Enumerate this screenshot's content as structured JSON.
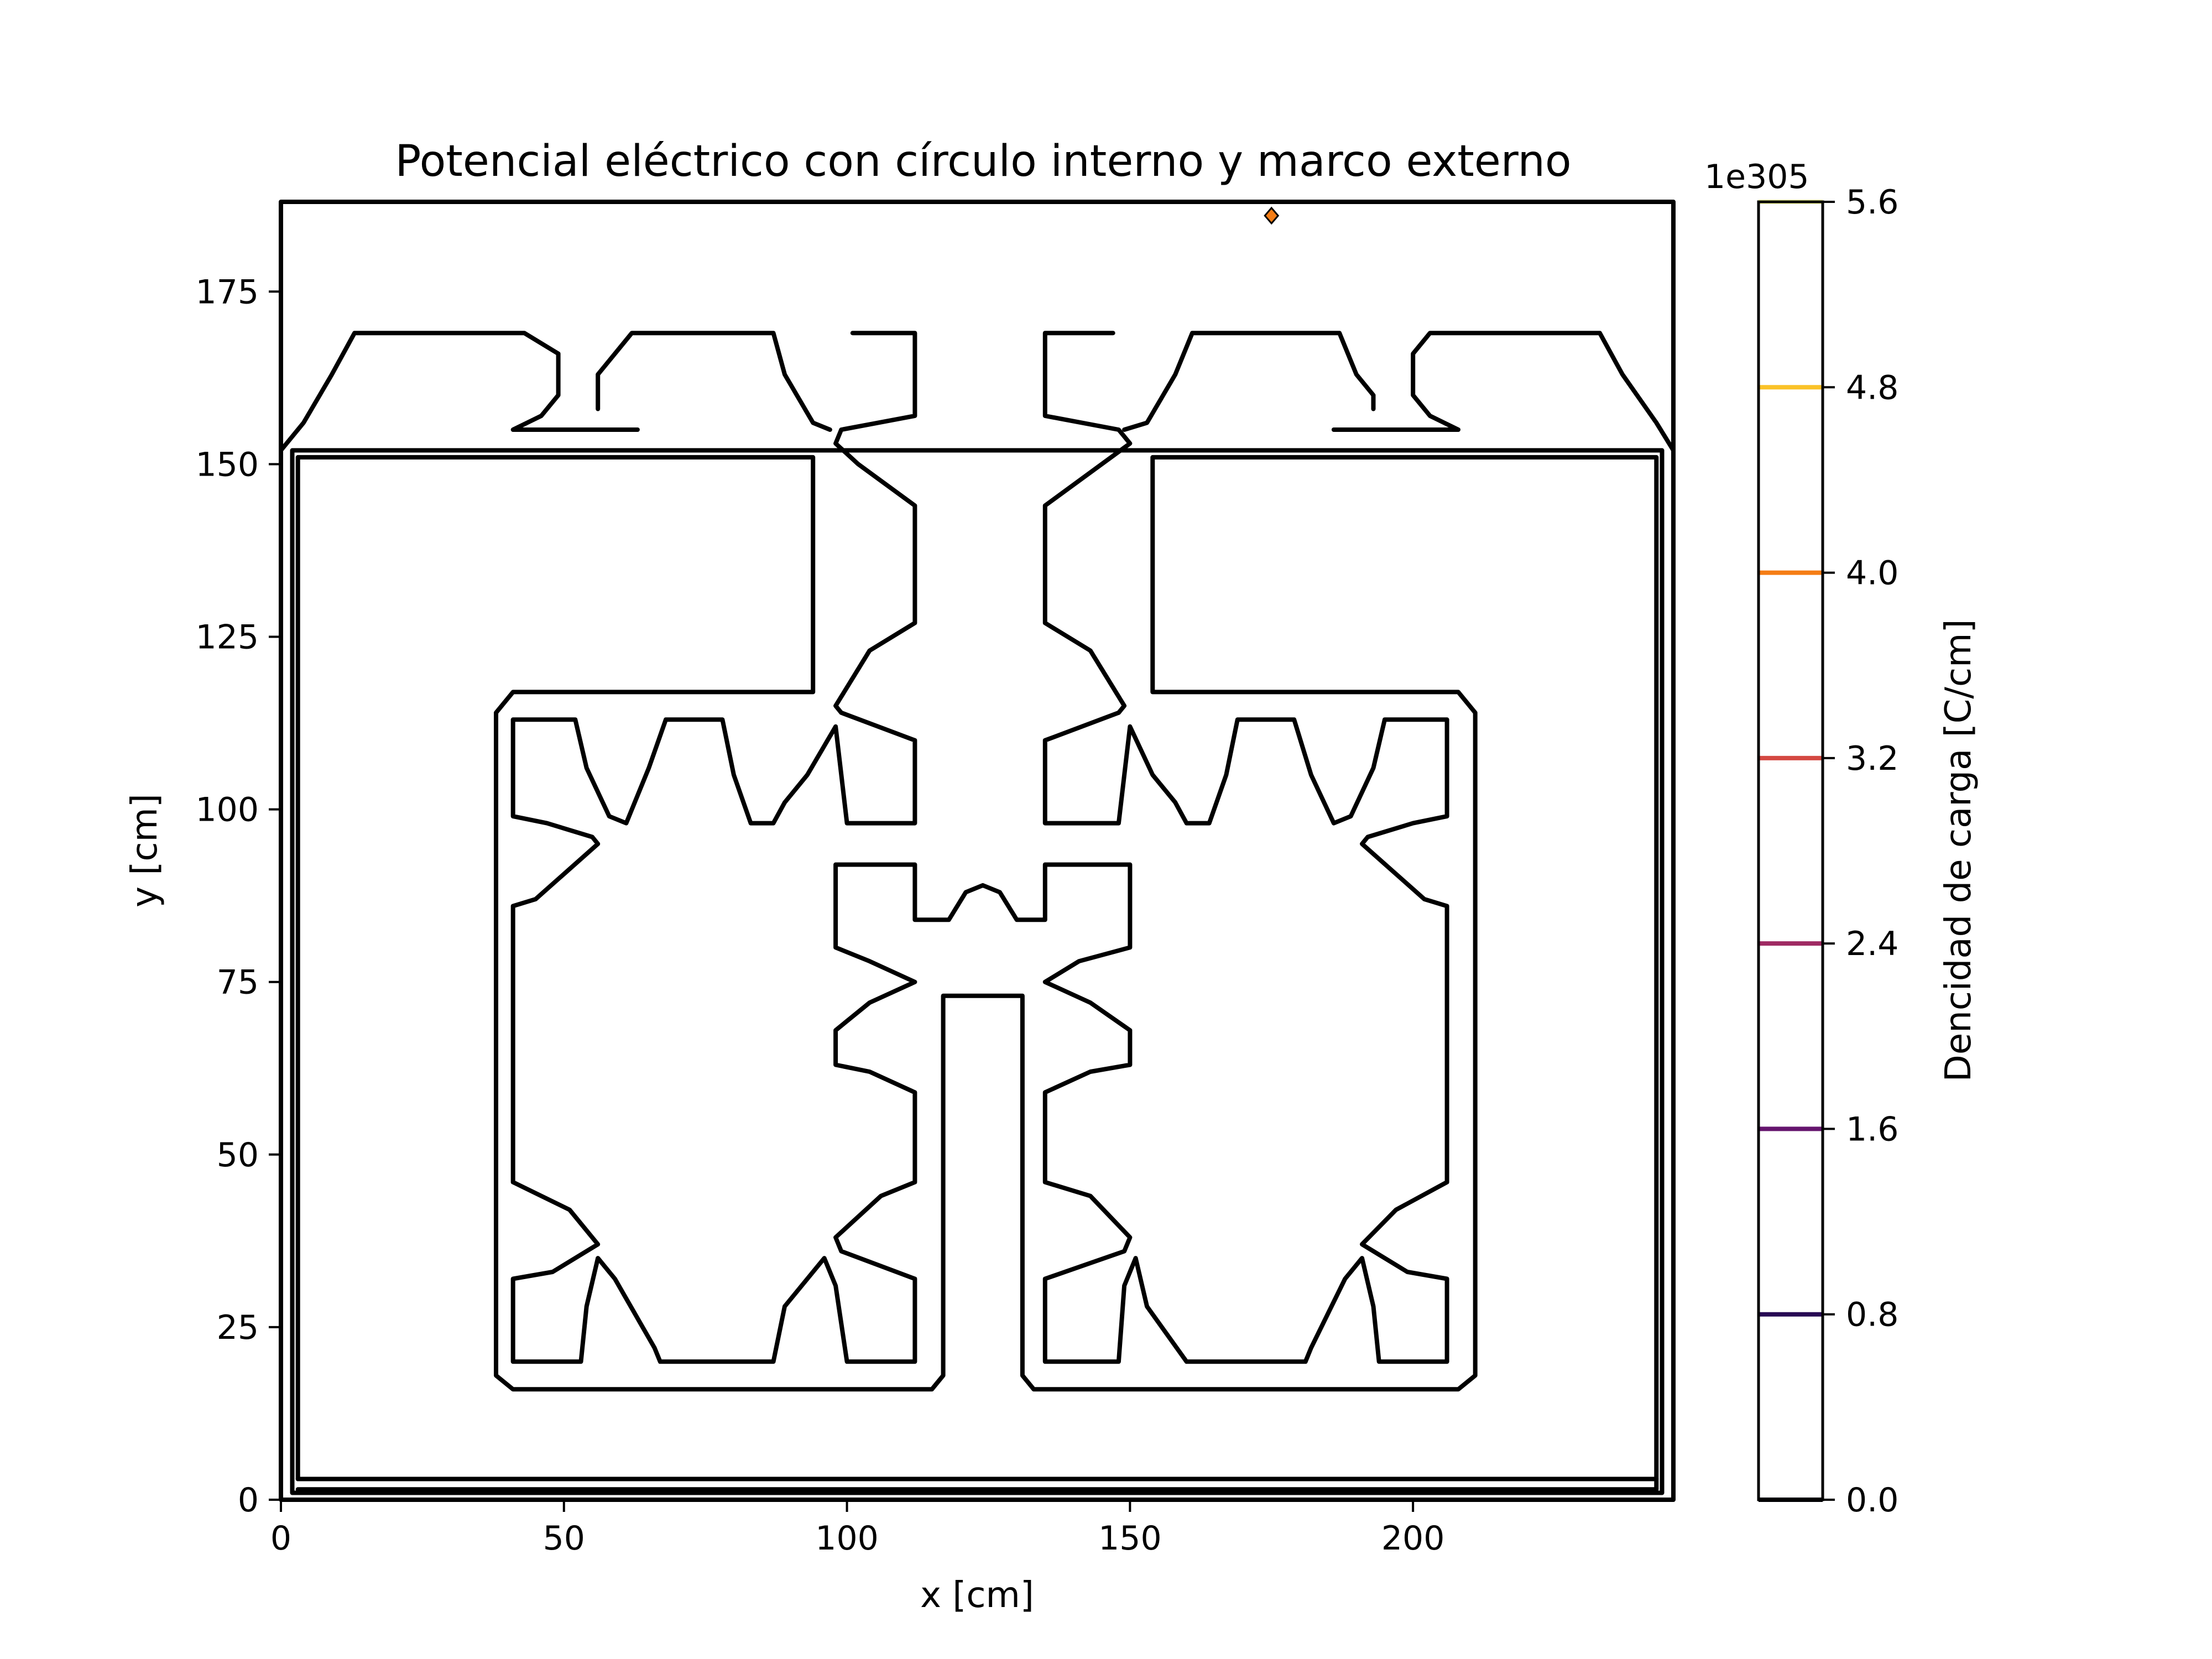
{
  "chart_data": {
    "type": "contour",
    "title": "Potencial eléctrico con círculo interno y marco externo",
    "xlabel": "x [cm]",
    "ylabel": "y [cm]",
    "xlim": [
      0,
      246
    ],
    "ylim": [
      0,
      188
    ],
    "x_ticks": [
      0,
      50,
      100,
      150,
      200
    ],
    "y_ticks": [
      0,
      25,
      50,
      75,
      100,
      125,
      150,
      175
    ],
    "grid": false,
    "colorbar": {
      "label": "Dencidad de carga  [C/cm]",
      "offset_text": "1e305",
      "ticks": [
        "0.0",
        "0.8",
        "1.6",
        "2.4",
        "3.2",
        "4.0",
        "4.8",
        "5.6"
      ],
      "levels": [
        0.0,
        0.8,
        1.6,
        2.4,
        3.2,
        4.0,
        4.8,
        5.6
      ],
      "colors": [
        "#000004",
        "#280b54",
        "#65156e",
        "#9f2a63",
        "#d44842",
        "#f57d15",
        "#fac228",
        "#fcffa4"
      ],
      "range": [
        0,
        5.6
      ]
    },
    "contour_color": "#000000",
    "marker": {
      "x": 175,
      "y": 186,
      "color": "#f57d15"
    },
    "contours": [
      {
        "name": "outer-frame-outer",
        "points": [
          [
            0,
            0
          ],
          [
            246,
            0
          ],
          [
            246,
            188
          ],
          [
            0,
            188
          ]
        ]
      },
      {
        "name": "outer-frame-inner",
        "points": [
          [
            2,
            1
          ],
          [
            244,
            1
          ],
          [
            244,
            152
          ],
          [
            2,
            152
          ]
        ]
      },
      {
        "name": "bottom-band",
        "points": [
          [
            3,
            3
          ],
          [
            243,
            3
          ],
          [
            243,
            1.5
          ],
          [
            3,
            1.5
          ]
        ]
      },
      {
        "name": "left-wall",
        "points": [
          [
            3,
            3
          ],
          [
            3,
            151
          ],
          [
            94,
            151
          ],
          [
            94,
            117
          ],
          [
            41,
            117
          ],
          [
            38,
            114
          ],
          [
            38,
            18
          ],
          [
            41,
            16
          ],
          [
            115,
            16
          ],
          [
            117,
            18
          ],
          [
            117,
            73
          ],
          [
            131,
            73
          ],
          [
            131,
            18
          ],
          [
            133,
            16
          ],
          [
            208,
            16
          ],
          [
            211,
            18
          ],
          [
            211,
            114
          ],
          [
            208,
            117
          ],
          [
            154,
            117
          ],
          [
            154,
            151
          ],
          [
            243,
            151
          ],
          [
            243,
            3
          ]
        ]
      },
      {
        "name": "top-left-cap-1",
        "points": [
          [
            0,
            152
          ],
          [
            4,
            156
          ],
          [
            9,
            163
          ],
          [
            13,
            169
          ],
          [
            43,
            169
          ],
          [
            49,
            166
          ],
          [
            49,
            160
          ],
          [
            46,
            157
          ],
          [
            41,
            155
          ],
          [
            63,
            155
          ]
        ]
      },
      {
        "name": "top-left-cap-2",
        "points": [
          [
            56,
            158
          ],
          [
            56,
            163
          ],
          [
            62,
            169
          ],
          [
            87,
            169
          ],
          [
            89,
            163
          ],
          [
            94,
            156
          ],
          [
            97,
            155
          ]
        ]
      },
      {
        "name": "top-left-cap-3",
        "points": [
          [
            101,
            169
          ],
          [
            112,
            169
          ],
          [
            112,
            157
          ],
          [
            99,
            155
          ],
          [
            98,
            153
          ],
          [
            102,
            150
          ],
          [
            112,
            144
          ],
          [
            112,
            127
          ],
          [
            104,
            123
          ],
          [
            98,
            115
          ],
          [
            99,
            114
          ],
          [
            112,
            110
          ],
          [
            112,
            98
          ],
          [
            100,
            98
          ],
          [
            98,
            112
          ],
          [
            93,
            105
          ],
          [
            89,
            101
          ],
          [
            87,
            98
          ],
          [
            83,
            98
          ],
          [
            80,
            105
          ],
          [
            78,
            113
          ],
          [
            68,
            113
          ],
          [
            65,
            106
          ],
          [
            61,
            98
          ],
          [
            58,
            99
          ],
          [
            54,
            106
          ],
          [
            52,
            113
          ],
          [
            41,
            113
          ],
          [
            41,
            99
          ],
          [
            47,
            98
          ],
          [
            55,
            96
          ],
          [
            56,
            95
          ],
          [
            45,
            87
          ],
          [
            41,
            86
          ],
          [
            41,
            46
          ],
          [
            51,
            42
          ],
          [
            56,
            37
          ],
          [
            48,
            33
          ],
          [
            41,
            32
          ],
          [
            41,
            20
          ],
          [
            53,
            20
          ],
          [
            54,
            28
          ],
          [
            56,
            35
          ],
          [
            59,
            32
          ],
          [
            66,
            22
          ],
          [
            67,
            20
          ],
          [
            87,
            20
          ],
          [
            89,
            28
          ],
          [
            96,
            35
          ],
          [
            98,
            31
          ],
          [
            100,
            20
          ],
          [
            112,
            20
          ],
          [
            112,
            32
          ],
          [
            99,
            36
          ],
          [
            98,
            38
          ],
          [
            106,
            44
          ],
          [
            112,
            46
          ],
          [
            112,
            59
          ],
          [
            104,
            62
          ],
          [
            98,
            63
          ],
          [
            98,
            68
          ],
          [
            104,
            72
          ],
          [
            112,
            75
          ],
          [
            104,
            78
          ],
          [
            98,
            80
          ],
          [
            98,
            92
          ],
          [
            112,
            92
          ],
          [
            112,
            84
          ],
          [
            118,
            84
          ],
          [
            121,
            88
          ],
          [
            124,
            89
          ],
          [
            127,
            88
          ],
          [
            130,
            84
          ],
          [
            135,
            84
          ],
          [
            135,
            92
          ],
          [
            150,
            92
          ],
          [
            150,
            80
          ],
          [
            141,
            78
          ],
          [
            135,
            75
          ],
          [
            143,
            72
          ],
          [
            150,
            68
          ],
          [
            150,
            63
          ],
          [
            143,
            62
          ],
          [
            135,
            59
          ],
          [
            135,
            46
          ],
          [
            143,
            44
          ],
          [
            150,
            38
          ],
          [
            149,
            36
          ],
          [
            135,
            32
          ],
          [
            135,
            20
          ],
          [
            148,
            20
          ],
          [
            149,
            31
          ],
          [
            151,
            35
          ],
          [
            153,
            28
          ],
          [
            160,
            20
          ],
          [
            181,
            20
          ],
          [
            182,
            22
          ],
          [
            188,
            32
          ],
          [
            191,
            35
          ],
          [
            193,
            28
          ],
          [
            194,
            20
          ],
          [
            206,
            20
          ],
          [
            206,
            32
          ],
          [
            199,
            33
          ],
          [
            191,
            37
          ],
          [
            197,
            42
          ],
          [
            206,
            46
          ],
          [
            206,
            86
          ],
          [
            202,
            87
          ],
          [
            191,
            95
          ],
          [
            192,
            96
          ],
          [
            200,
            98
          ],
          [
            206,
            99
          ],
          [
            206,
            113
          ],
          [
            195,
            113
          ],
          [
            193,
            106
          ],
          [
            189,
            99
          ],
          [
            186,
            98
          ],
          [
            182,
            105
          ],
          [
            179,
            113
          ],
          [
            169,
            113
          ],
          [
            167,
            105
          ],
          [
            164,
            98
          ],
          [
            160,
            98
          ],
          [
            158,
            101
          ],
          [
            154,
            105
          ],
          [
            150,
            112
          ],
          [
            148,
            98
          ],
          [
            135,
            98
          ],
          [
            135,
            110
          ],
          [
            148,
            114
          ],
          [
            149,
            115
          ],
          [
            143,
            123
          ],
          [
            135,
            127
          ],
          [
            135,
            144
          ],
          [
            145,
            150
          ],
          [
            150,
            153
          ],
          [
            148,
            155
          ],
          [
            135,
            157
          ],
          [
            135,
            169
          ],
          [
            147,
            169
          ]
        ]
      },
      {
        "name": "top-right-cap-1",
        "points": [
          [
            149,
            155
          ],
          [
            153,
            156
          ],
          [
            158,
            163
          ],
          [
            161,
            169
          ],
          [
            187,
            169
          ],
          [
            190,
            163
          ],
          [
            193,
            160
          ],
          [
            193,
            158
          ]
        ]
      },
      {
        "name": "top-right-cap-2",
        "points": [
          [
            186,
            155
          ],
          [
            208,
            155
          ],
          [
            203,
            157
          ],
          [
            200,
            160
          ],
          [
            200,
            166
          ],
          [
            203,
            169
          ],
          [
            233,
            169
          ],
          [
            237,
            163
          ],
          [
            243,
            156
          ],
          [
            246,
            152
          ]
        ]
      }
    ]
  }
}
